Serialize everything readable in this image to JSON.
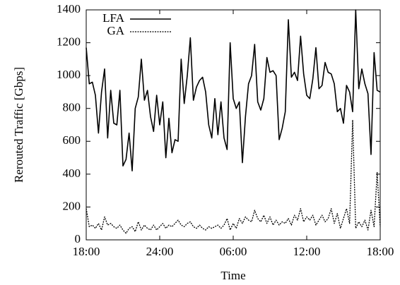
{
  "chart_data": {
    "type": "line",
    "xlabel": "Time",
    "ylabel": "Rerouted Traffic [Gbps]",
    "x": [
      18,
      18.25,
      18.5,
      18.75,
      19,
      19.25,
      19.5,
      19.75,
      20,
      20.25,
      20.5,
      20.75,
      21,
      21.25,
      21.5,
      21.75,
      22,
      22.25,
      22.5,
      22.75,
      23,
      23.25,
      23.5,
      23.75,
      24,
      24.25,
      24.5,
      24.75,
      25,
      25.25,
      25.5,
      25.75,
      26,
      26.25,
      26.5,
      26.75,
      27,
      27.25,
      27.5,
      27.75,
      28,
      28.25,
      28.5,
      28.75,
      29,
      29.25,
      29.5,
      29.75,
      30,
      30.25,
      30.5,
      30.75,
      31,
      31.25,
      31.5,
      31.75,
      32,
      32.25,
      32.5,
      32.75,
      33,
      33.25,
      33.5,
      33.75,
      34,
      34.25,
      34.5,
      34.75,
      35,
      35.25,
      35.5,
      35.75,
      36,
      36.25,
      36.5,
      36.75,
      37,
      37.25,
      37.5,
      37.75,
      38,
      38.25,
      38.5,
      38.75,
      39,
      39.25,
      39.5,
      39.75,
      40,
      40.25,
      40.5,
      40.75,
      41,
      41.25,
      41.5,
      41.75,
      42
    ],
    "series": [
      {
        "name": "LFA",
        "color": "#000000",
        "style": "solid",
        "values": [
          1170,
          950,
          960,
          880,
          650,
          900,
          1040,
          620,
          910,
          710,
          700,
          910,
          450,
          490,
          650,
          420,
          800,
          870,
          1100,
          850,
          910,
          750,
          660,
          880,
          700,
          840,
          500,
          740,
          530,
          610,
          600,
          1100,
          830,
          1000,
          1230,
          850,
          930,
          970,
          990,
          900,
          700,
          620,
          860,
          640,
          840,
          620,
          550,
          1200,
          860,
          800,
          840,
          470,
          750,
          950,
          1000,
          1190,
          840,
          790,
          860,
          1110,
          1020,
          1030,
          1000,
          610,
          680,
          780,
          1340,
          990,
          1020,
          970,
          1240,
          1010,
          880,
          860,
          980,
          1170,
          920,
          940,
          1080,
          1020,
          1010,
          950,
          780,
          800,
          710,
          940,
          900,
          780,
          1400,
          920,
          1040,
          950,
          890,
          520,
          1140,
          910,
          900
        ]
      },
      {
        "name": "GA",
        "color": "#000000",
        "style": "dotted",
        "values": [
          190,
          80,
          90,
          70,
          100,
          60,
          140,
          90,
          100,
          80,
          70,
          90,
          60,
          40,
          70,
          80,
          50,
          110,
          60,
          90,
          70,
          60,
          90,
          60,
          80,
          100,
          70,
          90,
          80,
          100,
          120,
          90,
          80,
          100,
          110,
          80,
          70,
          90,
          70,
          60,
          80,
          70,
          80,
          90,
          70,
          90,
          130,
          60,
          100,
          70,
          130,
          100,
          140,
          120,
          110,
          180,
          130,
          110,
          150,
          100,
          140,
          90,
          120,
          90,
          110,
          100,
          130,
          90,
          150,
          120,
          190,
          110,
          140,
          120,
          150,
          90,
          120,
          150,
          110,
          130,
          190,
          100,
          160,
          70,
          130,
          190,
          100,
          730,
          70,
          110,
          80,
          120,
          60,
          180,
          80,
          410,
          80
        ]
      }
    ],
    "xlim": [
      18,
      42
    ],
    "xticks": [
      {
        "value": 18,
        "label": "18:00"
      },
      {
        "value": 24,
        "label": "24:00"
      },
      {
        "value": 30,
        "label": "06:00"
      },
      {
        "value": 36,
        "label": "12:00"
      },
      {
        "value": 42,
        "label": "18:00"
      }
    ],
    "ylim": [
      0,
      1400
    ],
    "yticks": [
      0,
      200,
      400,
      600,
      800,
      1000,
      1200,
      1400
    ],
    "legend": "top-left",
    "grid": false
  }
}
